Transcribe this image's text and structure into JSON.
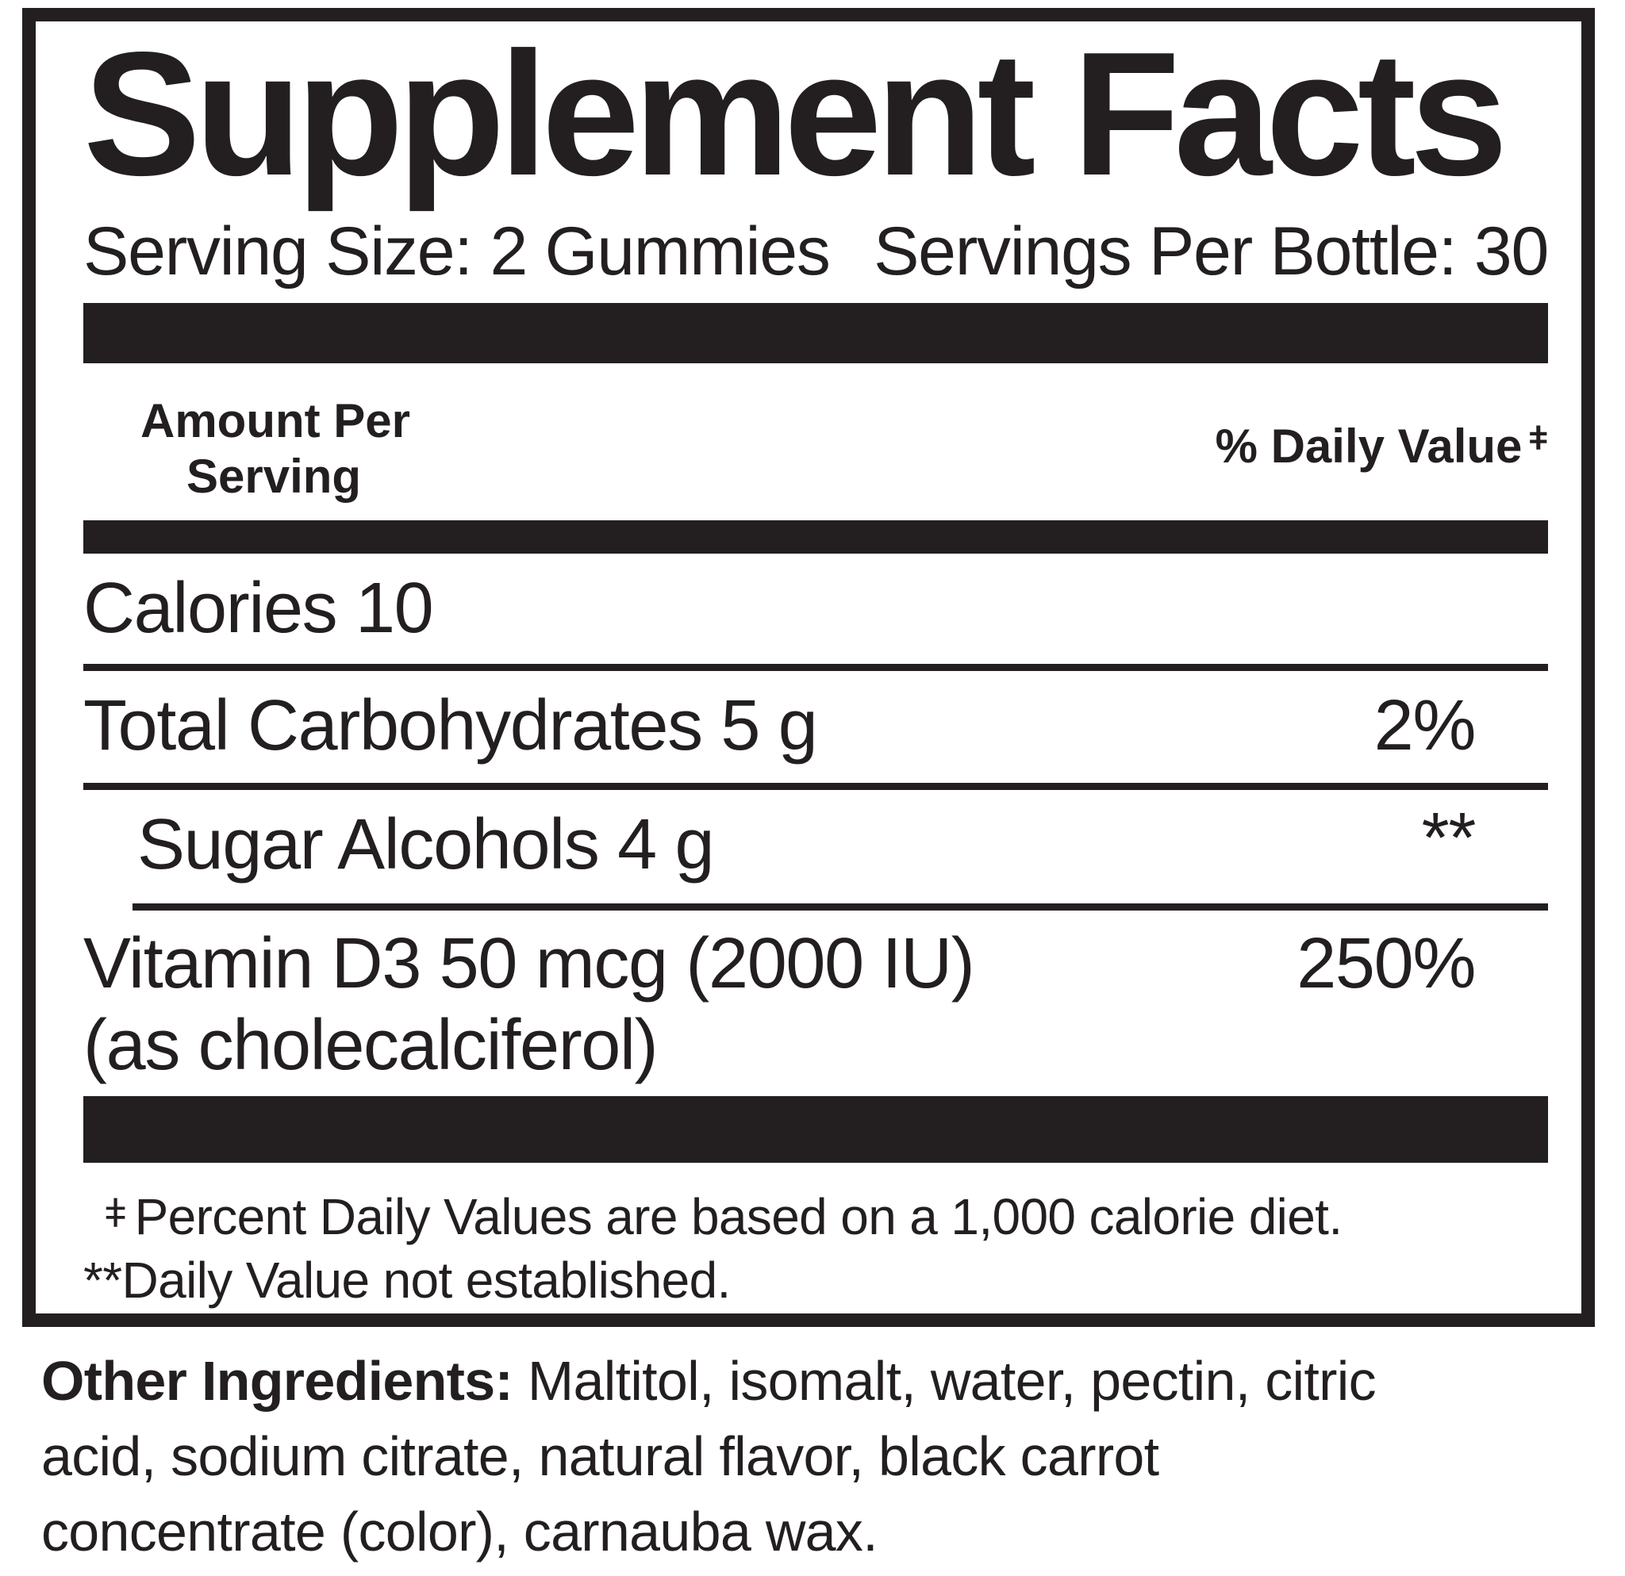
{
  "label": {
    "title": "Supplement Facts",
    "serving_size": "Serving Size: 2 Gummies",
    "servings_per_bottle": "Servings Per Bottle: 30",
    "columns": {
      "amount_line1": "Amount Per",
      "amount_line2": "Serving",
      "daily_value": "% Daily Value",
      "daily_value_symbol": "ǂ"
    },
    "rows": [
      {
        "name": "Calories 10",
        "value": ""
      },
      {
        "name": "Total Carbohydrates 5 g",
        "value": "2%"
      },
      {
        "name": "Sugar Alcohols 4 g",
        "value": "**"
      },
      {
        "name": "Vitamin D3 50 mcg (2000 IU)",
        "name_line2": "(as cholecalciferol)",
        "value": "250%"
      }
    ],
    "footnotes": {
      "daily_value_symbol": "ǂ",
      "daily_value_text": "Percent Daily Values are based on a 1,000 calorie diet.",
      "not_established_text": "**Daily Value not established."
    }
  },
  "other_ingredients": {
    "heading": "Other Ingredients:",
    "line1_rest": "Maltitol, isomalt, water, pectin, citric",
    "line2": "acid, sodium citrate, natural flavor, black carrot",
    "line3": "concentrate (color), carnauba wax."
  },
  "colors": {
    "ink": "#231f20",
    "background": "#ffffff"
  }
}
